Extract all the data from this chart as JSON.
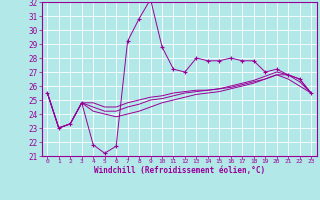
{
  "xlabel": "Windchill (Refroidissement éolien,°C)",
  "xlim": [
    -0.5,
    23.5
  ],
  "ylim": [
    21,
    32
  ],
  "yticks": [
    21,
    22,
    23,
    24,
    25,
    26,
    27,
    28,
    29,
    30,
    31,
    32
  ],
  "xticks": [
    0,
    1,
    2,
    3,
    4,
    5,
    6,
    7,
    8,
    9,
    10,
    11,
    12,
    13,
    14,
    15,
    16,
    17,
    18,
    19,
    20,
    21,
    22,
    23
  ],
  "background_color": "#b3e8e8",
  "grid_color": "#ffffff",
  "line_color": "#990099",
  "hours": [
    0,
    1,
    2,
    3,
    4,
    5,
    6,
    7,
    8,
    9,
    10,
    11,
    12,
    13,
    14,
    15,
    16,
    17,
    18,
    19,
    20,
    21,
    22,
    23
  ],
  "series1": [
    25.5,
    23.0,
    23.3,
    24.8,
    21.8,
    21.2,
    21.7,
    29.2,
    30.8,
    32.2,
    28.8,
    27.2,
    27.0,
    28.0,
    27.8,
    27.8,
    28.0,
    27.8,
    27.8,
    27.0,
    27.2,
    26.8,
    26.5,
    25.5
  ],
  "series2": [
    25.5,
    23.0,
    23.3,
    24.8,
    24.8,
    24.5,
    24.5,
    24.8,
    25.0,
    25.2,
    25.3,
    25.5,
    25.6,
    25.7,
    25.7,
    25.8,
    25.9,
    26.1,
    26.3,
    26.5,
    26.8,
    26.8,
    26.5,
    25.5
  ],
  "series3": [
    25.5,
    23.0,
    23.3,
    24.8,
    24.5,
    24.2,
    24.2,
    24.5,
    24.7,
    25.0,
    25.1,
    25.3,
    25.5,
    25.6,
    25.7,
    25.8,
    26.0,
    26.2,
    26.4,
    26.7,
    27.0,
    26.8,
    26.3,
    25.5
  ],
  "series4": [
    25.5,
    23.0,
    23.3,
    24.8,
    24.2,
    24.0,
    23.8,
    24.0,
    24.2,
    24.5,
    24.8,
    25.0,
    25.2,
    25.4,
    25.5,
    25.6,
    25.8,
    26.0,
    26.2,
    26.5,
    26.8,
    26.5,
    26.0,
    25.5
  ]
}
